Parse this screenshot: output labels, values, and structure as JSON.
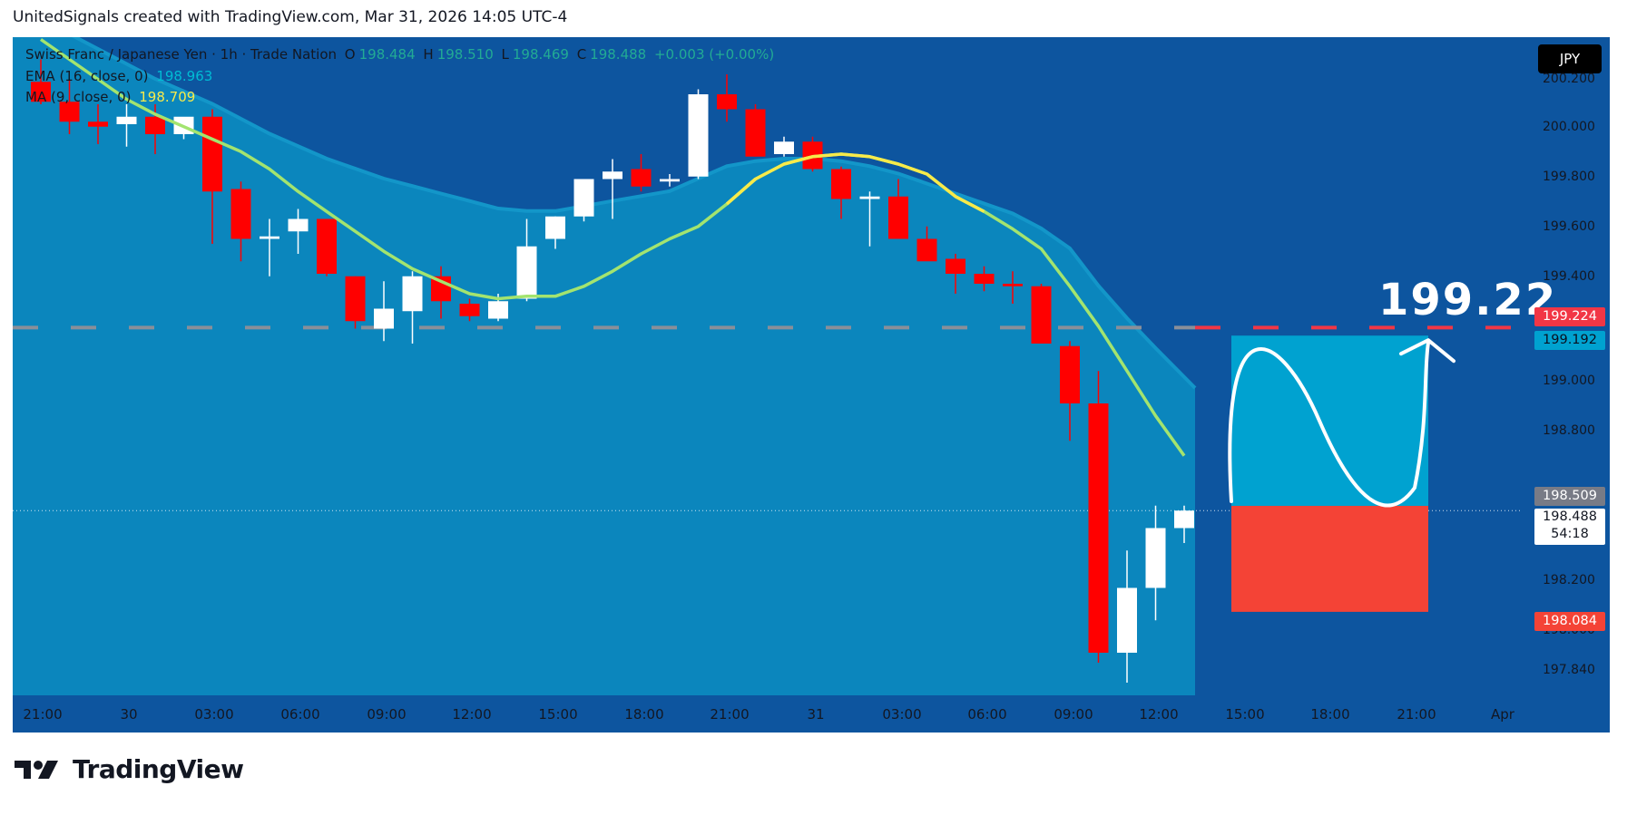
{
  "header": {
    "attribution": "UnitedSignals created with TradingView.com, Mar 31, 2026 14:05 UTC-4"
  },
  "legend": {
    "symbol": "Swiss Franc / Japanese Yen · 1h · Trade Nation",
    "o_label": "O",
    "o_value": "198.484",
    "h_label": "H",
    "h_value": "198.510",
    "l_label": "L",
    "l_value": "198.469",
    "c_label": "C",
    "c_value": "198.488",
    "change": "+0.003 (+0.00%)",
    "ema_label": "EMA (16, close, 0)",
    "ema_value": "198.963",
    "ma_label": "MA (9, close, 0)",
    "ma_value": "198.709"
  },
  "currency": "JPY",
  "target_label": "199.22",
  "price_tags": {
    "target": "199.224",
    "tp": "199.192",
    "prev": "198.509",
    "last": "198.488",
    "countdown": "54:18",
    "sl": "198.084"
  },
  "footer": {
    "brand": "TradingView"
  },
  "colors": {
    "background": "#0d559f",
    "cloud": "#0b86bd",
    "up_candle": "#ffffff",
    "down_candle": "#ff0000",
    "ema": "#a3e46f",
    "ma": "#f7ea4a",
    "target_line": "#f23645",
    "tp_zone": "#00a2d0",
    "sl_zone": "#f44336"
  },
  "chart_data": {
    "type": "candlestick",
    "title": "Swiss Franc / Japanese Yen · 1h · Trade Nation",
    "ylim": [
      197.78,
      200.3
    ],
    "y_ticks": [
      "200.200",
      "200.000",
      "199.800",
      "199.600",
      "199.400",
      "199.000",
      "198.800",
      "198.200",
      "198.000",
      "197.840"
    ],
    "x_ticks": [
      "21:00",
      "30",
      "03:00",
      "06:00",
      "09:00",
      "12:00",
      "15:00",
      "18:00",
      "21:00",
      "31",
      "03:00",
      "06:00",
      "09:00",
      "12:00",
      "15:00",
      "18:00",
      "21:00",
      "Apr"
    ],
    "candles": [
      {
        "o": 200.21,
        "h": 200.3,
        "l": 200.12,
        "c": 200.13
      },
      {
        "o": 200.13,
        "h": 200.22,
        "l": 200.0,
        "c": 200.05
      },
      {
        "o": 200.05,
        "h": 200.12,
        "l": 199.96,
        "c": 200.03
      },
      {
        "o": 200.04,
        "h": 200.12,
        "l": 199.95,
        "c": 200.07
      },
      {
        "o": 200.07,
        "h": 200.12,
        "l": 199.92,
        "c": 200.0
      },
      {
        "o": 200.0,
        "h": 200.06,
        "l": 199.98,
        "c": 200.07
      },
      {
        "o": 200.07,
        "h": 200.1,
        "l": 199.56,
        "c": 199.77
      },
      {
        "o": 199.78,
        "h": 199.81,
        "l": 199.49,
        "c": 199.58
      },
      {
        "o": 199.58,
        "h": 199.66,
        "l": 199.43,
        "c": 199.59
      },
      {
        "o": 199.61,
        "h": 199.7,
        "l": 199.52,
        "c": 199.66
      },
      {
        "o": 199.66,
        "h": 199.66,
        "l": 199.43,
        "c": 199.44
      },
      {
        "o": 199.43,
        "h": 199.43,
        "l": 199.22,
        "c": 199.25
      },
      {
        "o": 199.22,
        "h": 199.41,
        "l": 199.17,
        "c": 199.3
      },
      {
        "o": 199.29,
        "h": 199.45,
        "l": 199.16,
        "c": 199.43
      },
      {
        "o": 199.43,
        "h": 199.47,
        "l": 199.26,
        "c": 199.33
      },
      {
        "o": 199.32,
        "h": 199.34,
        "l": 199.25,
        "c": 199.27
      },
      {
        "o": 199.26,
        "h": 199.36,
        "l": 199.25,
        "c": 199.33
      },
      {
        "o": 199.34,
        "h": 199.66,
        "l": 199.33,
        "c": 199.55
      },
      {
        "o": 199.58,
        "h": 199.67,
        "l": 199.54,
        "c": 199.67
      },
      {
        "o": 199.67,
        "h": 199.82,
        "l": 199.65,
        "c": 199.82
      },
      {
        "o": 199.82,
        "h": 199.9,
        "l": 199.66,
        "c": 199.85
      },
      {
        "o": 199.86,
        "h": 199.92,
        "l": 199.77,
        "c": 199.79
      },
      {
        "o": 199.81,
        "h": 199.84,
        "l": 199.79,
        "c": 199.82
      },
      {
        "o": 199.83,
        "h": 200.18,
        "l": 199.82,
        "c": 200.16
      },
      {
        "o": 200.16,
        "h": 200.24,
        "l": 200.05,
        "c": 200.1
      },
      {
        "o": 200.1,
        "h": 200.12,
        "l": 199.91,
        "c": 199.91
      },
      {
        "o": 199.92,
        "h": 199.99,
        "l": 199.91,
        "c": 199.97
      },
      {
        "o": 199.97,
        "h": 199.99,
        "l": 199.85,
        "c": 199.86
      },
      {
        "o": 199.86,
        "h": 199.87,
        "l": 199.66,
        "c": 199.74
      },
      {
        "o": 199.74,
        "h": 199.77,
        "l": 199.55,
        "c": 199.75
      },
      {
        "o": 199.75,
        "h": 199.82,
        "l": 199.58,
        "c": 199.58
      },
      {
        "o": 199.58,
        "h": 199.63,
        "l": 199.5,
        "c": 199.49
      },
      {
        "o": 199.5,
        "h": 199.52,
        "l": 199.36,
        "c": 199.44
      },
      {
        "o": 199.44,
        "h": 199.47,
        "l": 199.37,
        "c": 199.4
      },
      {
        "o": 199.4,
        "h": 199.45,
        "l": 199.32,
        "c": 199.39
      },
      {
        "o": 199.39,
        "h": 199.4,
        "l": 199.16,
        "c": 199.16
      },
      {
        "o": 199.15,
        "h": 199.17,
        "l": 198.77,
        "c": 198.92
      },
      {
        "o": 198.92,
        "h": 199.05,
        "l": 197.88,
        "c": 197.92
      },
      {
        "o": 197.92,
        "h": 198.33,
        "l": 197.8,
        "c": 198.18
      },
      {
        "o": 198.18,
        "h": 198.51,
        "l": 198.05,
        "c": 198.42
      },
      {
        "o": 198.42,
        "h": 198.51,
        "l": 198.36,
        "c": 198.49
      }
    ],
    "ema": [
      200.44,
      200.38,
      200.32,
      200.26,
      200.2,
      200.15,
      200.1,
      200.04,
      199.98,
      199.93,
      199.88,
      199.84,
      199.8,
      199.77,
      199.74,
      199.71,
      199.68,
      199.67,
      199.67,
      199.69,
      199.71,
      199.73,
      199.75,
      199.8,
      199.85,
      199.87,
      199.88,
      199.88,
      199.87,
      199.85,
      199.82,
      199.78,
      199.74,
      199.7,
      199.66,
      199.6,
      199.52,
      199.37,
      199.24,
      199.12,
      198.96
    ],
    "ma": [
      200.38,
      200.3,
      200.22,
      200.14,
      200.08,
      200.03,
      199.98,
      199.93,
      199.86,
      199.77,
      199.69,
      199.61,
      199.53,
      199.46,
      199.41,
      199.36,
      199.34,
      199.35,
      199.35,
      199.39,
      199.45,
      199.52,
      199.58,
      199.63,
      199.72,
      199.82,
      199.88,
      199.91,
      199.92,
      199.91,
      199.88,
      199.84,
      199.75,
      199.69,
      199.62,
      199.54,
      199.39,
      199.23,
      199.05,
      198.87,
      198.71
    ],
    "target_line": 199.224,
    "position": {
      "entry": 198.509,
      "take_profit": 199.192,
      "stop_loss": 198.084
    }
  }
}
